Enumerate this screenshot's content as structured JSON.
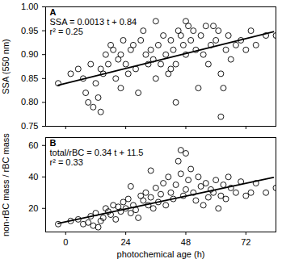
{
  "chart_data": [
    {
      "type": "scatter",
      "panel": "A",
      "y_label": "SSA (550 nm)",
      "annotations": [
        "SSA = 0.0013 t + 0.84",
        "r² = 0.25"
      ],
      "marker": "open circle",
      "color": "#000000",
      "tick_labels": "y",
      "xlim": [
        -8,
        84
      ],
      "xticks": [
        0,
        24,
        48,
        72
      ],
      "ylim": [
        0.75,
        1.0
      ],
      "yticks": [
        0.75,
        {
          "value": 0.8,
          "label": "0.80"
        },
        0.85,
        {
          "value": 0.9,
          "label": "0.90"
        },
        0.95,
        {
          "value": 1.0,
          "label": "1.00"
        }
      ],
      "x": [
        -3,
        2,
        5,
        7,
        8,
        9,
        10,
        11,
        12,
        13,
        14,
        15,
        16,
        17,
        18,
        19,
        20,
        21,
        22,
        23,
        24,
        25,
        26,
        27,
        28,
        29,
        30,
        31,
        32,
        33,
        34,
        35,
        36,
        37,
        38,
        39,
        40,
        41,
        42,
        43,
        44,
        45,
        46,
        47,
        48,
        48,
        49,
        50,
        51,
        52,
        53,
        54,
        55,
        56,
        57,
        58,
        59,
        60,
        61,
        62,
        62,
        63,
        64,
        65,
        66,
        68,
        70,
        72,
        74,
        76,
        80,
        84,
        44,
        36,
        42,
        22,
        14
      ],
      "values": [
        0.84,
        0.86,
        0.87,
        0.85,
        0.82,
        0.8,
        0.88,
        0.79,
        0.84,
        0.81,
        0.87,
        0.86,
        0.9,
        0.88,
        0.92,
        0.91,
        0.85,
        0.89,
        0.83,
        0.93,
        0.88,
        0.86,
        0.91,
        0.92,
        0.87,
        0.82,
        0.93,
        0.95,
        0.9,
        0.88,
        0.91,
        0.89,
        0.85,
        0.92,
        0.88,
        0.94,
        0.9,
        0.86,
        0.87,
        0.91,
        0.88,
        0.95,
        0.94,
        0.92,
        0.9,
        0.97,
        0.96,
        0.93,
        0.95,
        0.91,
        0.83,
        0.94,
        0.9,
        0.96,
        0.88,
        0.92,
        0.96,
        0.93,
        0.95,
        0.86,
        0.77,
        0.83,
        0.91,
        0.94,
        0.89,
        0.92,
        0.93,
        0.91,
        0.95,
        0.92,
        0.94,
        0.94,
        0.8,
        0.97,
        0.93,
        0.9,
        0.78
      ],
      "fit": {
        "x": [
          -3,
          83
        ],
        "values": [
          0.836,
          0.948
        ]
      }
    },
    {
      "type": "scatter",
      "panel": "B",
      "y_label": "non-rBC mass / rBC mass",
      "x_label": "photochemical age (h)",
      "annotations": [
        "total/rBC = 0.34 t + 11.5",
        "r² = 0.33"
      ],
      "marker": "open circle",
      "color": "#000000",
      "xlim": [
        -8,
        84
      ],
      "xticks": [
        0,
        24,
        48,
        72
      ],
      "ylim": [
        5,
        65
      ],
      "yticks": [
        20,
        40,
        60
      ],
      "x": [
        -3,
        2,
        5,
        7,
        9,
        10,
        11,
        12,
        13,
        14,
        15,
        16,
        17,
        18,
        19,
        20,
        21,
        22,
        23,
        24,
        25,
        26,
        27,
        28,
        29,
        30,
        31,
        32,
        33,
        34,
        35,
        36,
        37,
        38,
        39,
        40,
        41,
        42,
        43,
        44,
        45,
        46,
        47,
        48,
        48,
        49,
        50,
        51,
        52,
        53,
        54,
        55,
        56,
        57,
        58,
        59,
        60,
        61,
        62,
        63,
        64,
        65,
        66,
        68,
        70,
        72,
        74,
        76,
        80,
        84,
        26,
        34,
        46
      ],
      "values": [
        10,
        12,
        13,
        10,
        11,
        15,
        9,
        17,
        8,
        12,
        14,
        20,
        18,
        16,
        22,
        13,
        21,
        18,
        24,
        20,
        26,
        17,
        22,
        19,
        14,
        28,
        25,
        30,
        22,
        27,
        20,
        33,
        24,
        29,
        36,
        22,
        40,
        30,
        26,
        35,
        50,
        42,
        28,
        55,
        32,
        38,
        45,
        30,
        25,
        40,
        34,
        22,
        36,
        27,
        32,
        30,
        38,
        20,
        28,
        35,
        26,
        40,
        33,
        30,
        37,
        28,
        30,
        36,
        30,
        33,
        34,
        44,
        57
      ],
      "fit": {
        "x": [
          -3,
          83
        ],
        "values": [
          10.48,
          39.72
        ]
      }
    }
  ]
}
